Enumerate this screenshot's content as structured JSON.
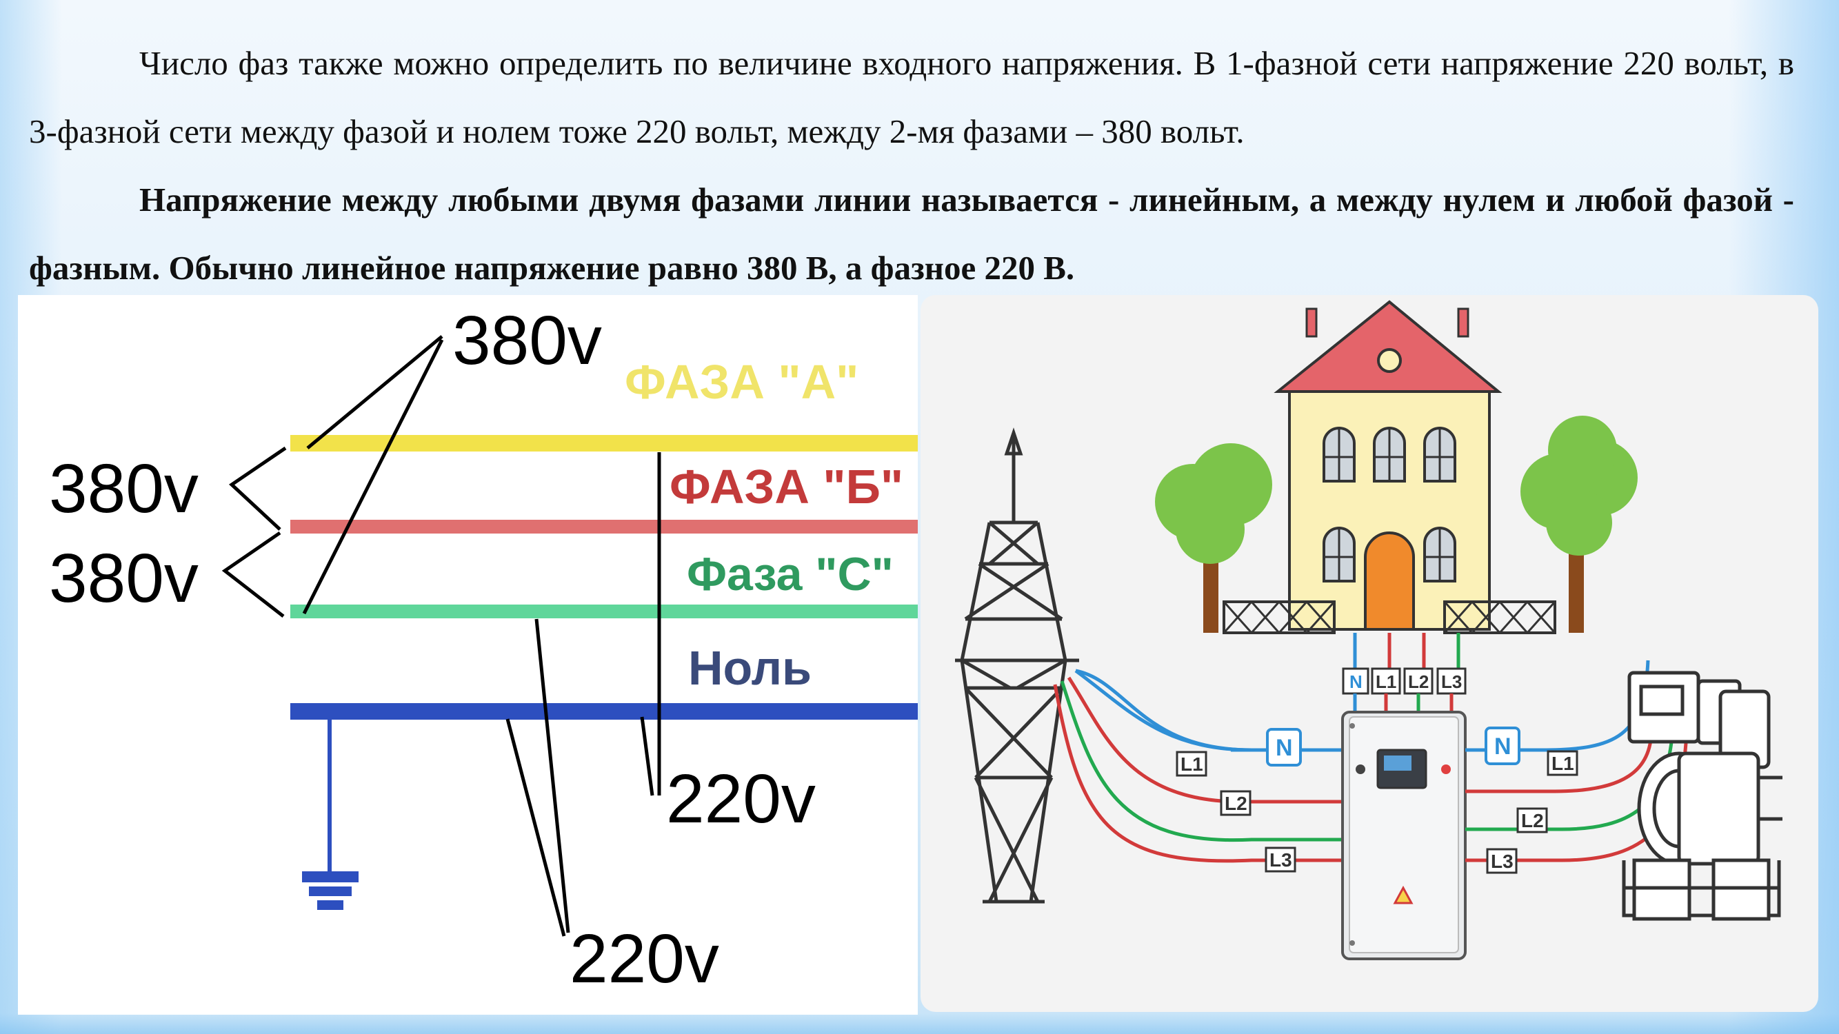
{
  "paragraphs": {
    "intro": "Число фаз также можно определить по величине входного напряжения. В 1-фазной сети напряжение 220 вольт, в 3-фазной сети между фазой и нолем тоже 220 вольт, между 2-мя фазами – 380 вольт.",
    "definition": "Напряжение между любыми двумя фазами линии называется -  линейным, а между нулем и любой фазой - фазным. Обычно линейное напряжение равно 380 В, а фазное 220 В."
  },
  "phase_diagram": {
    "lines": [
      {
        "label": "ФАЗА \"А\"",
        "color": "#f2e24a",
        "label_color": "#f0e46a"
      },
      {
        "label": "ФАЗА \"Б\"",
        "color": "#e07070",
        "label_color": "#c33a3a"
      },
      {
        "label": "Фаза \"С\"",
        "color": "#5fd69a",
        "label_color": "#2f9a5f"
      },
      {
        "label": "Ноль",
        "color": "#2d4fbf",
        "label_color": "#3a4a7a"
      }
    ],
    "voltage_labels": {
      "top": "380v",
      "left_upper": "380v",
      "left_lower": "380v",
      "right_bottom": "220v",
      "bottom": "220v"
    }
  },
  "scheme": {
    "terminal_labels": [
      "N",
      "L1",
      "L2",
      "L3"
    ],
    "left_wire_labels": [
      "N",
      "L1",
      "L2",
      "L3"
    ],
    "right_wire_labels": [
      "N",
      "L1",
      "L2",
      "L3"
    ],
    "wire_colors": {
      "N": "#2f8fd6",
      "L1": "#d23a3a",
      "L2": "#22a94f",
      "L3": "#d23a3a"
    },
    "house_wall_color": "#fbf1b8",
    "roof_color": "#e4646a",
    "door_color": "#f08a2c",
    "tree_color": "#7cc44a",
    "warning_icon": "warning-triangle-icon"
  }
}
